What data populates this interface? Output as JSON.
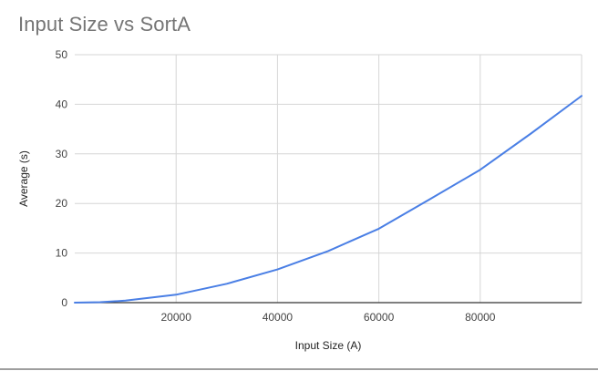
{
  "chart_data": {
    "type": "line",
    "title": "Input Size vs SortA",
    "xlabel": "Input Size (A)",
    "ylabel": "Average (s)",
    "xlim": [
      0,
      100000
    ],
    "ylim": [
      0,
      50
    ],
    "xticks": [
      20000,
      40000,
      60000,
      80000
    ],
    "yticks": [
      0,
      10,
      20,
      30,
      40,
      50
    ],
    "x_tick_labels": [
      "20000",
      "40000",
      "60000",
      "80000"
    ],
    "y_tick_labels": [
      "0",
      "10",
      "20",
      "30",
      "40",
      "50"
    ],
    "grid": true,
    "legend": "none",
    "colors": {
      "series": "#4a7fe5",
      "grid": "#d6d6d6",
      "axis": "#333333"
    },
    "series": [
      {
        "x": [
          0,
          5000,
          10000,
          20000,
          30000,
          40000,
          50000,
          60000,
          70000,
          80000,
          90000,
          100000
        ],
        "y": [
          0,
          0.1,
          0.4,
          1.6,
          3.8,
          6.7,
          10.4,
          14.9,
          20.8,
          26.8,
          34.1,
          41.7
        ]
      }
    ]
  }
}
